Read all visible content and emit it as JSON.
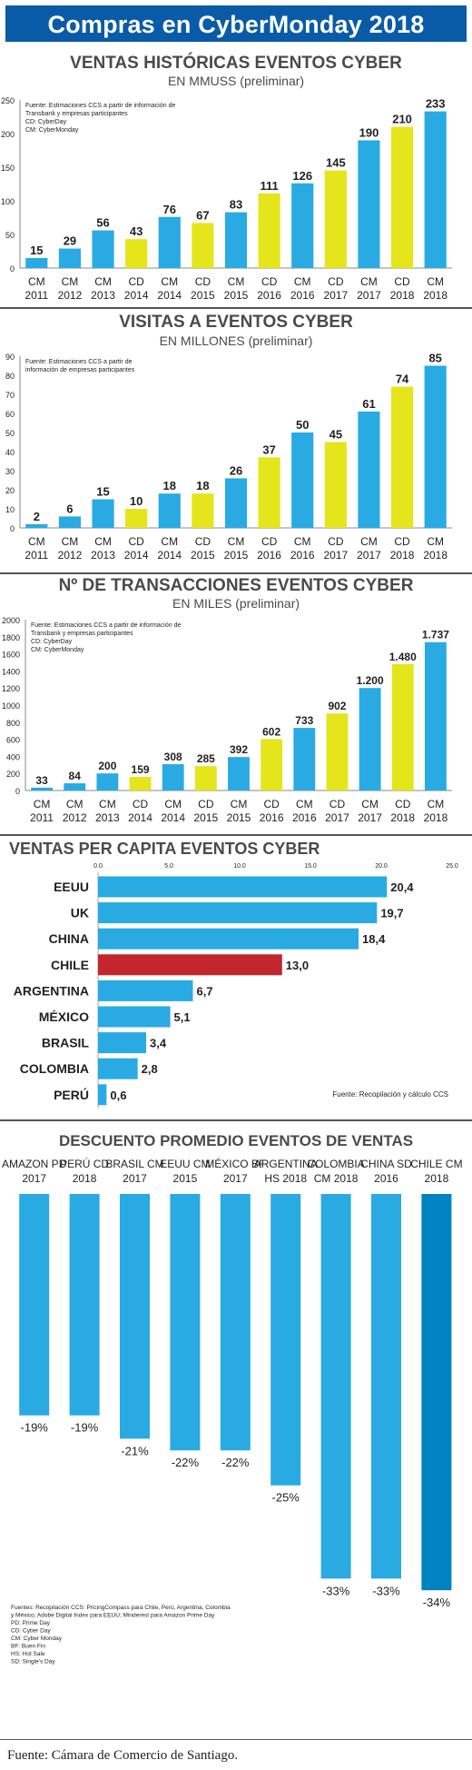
{
  "banner": {
    "title": "Compras en CyberMonday 2018"
  },
  "footer": {
    "text": "Fuente: Cámara de Comercio de Santiago."
  },
  "colors": {
    "cm": "#29aae2",
    "cd": "#e4e51b",
    "chile": "#c1272d",
    "sd": "#0083c0",
    "text": "#231f20"
  },
  "chart_data": [
    {
      "type": "bar",
      "title": "VENTAS HISTÓRICAS EVENTOS CYBER",
      "subtitle": "EN MMUSS (preliminar)",
      "note": [
        "Fuente: Estimaciones CCS a partir de información de",
        "Transbank y empresas participantes",
        "CD: CyberDay",
        "CM: CyberMonday"
      ],
      "categories": [
        [
          "CM",
          "2011"
        ],
        [
          "CM",
          "2012"
        ],
        [
          "CM",
          "2013"
        ],
        [
          "CD",
          "2014"
        ],
        [
          "CM",
          "2014"
        ],
        [
          "CD",
          "2015"
        ],
        [
          "CM",
          "2015"
        ],
        [
          "CD",
          "2016"
        ],
        [
          "CM",
          "2016"
        ],
        [
          "CD",
          "2017"
        ],
        [
          "CM",
          "2017"
        ],
        [
          "CD",
          "2018"
        ],
        [
          "CM",
          "2018"
        ]
      ],
      "values": [
        15,
        29,
        56,
        43,
        76,
        67,
        83,
        111,
        126,
        145,
        190,
        210,
        233
      ],
      "labels": [
        "15",
        "29",
        "56",
        "43",
        "76",
        "67",
        "83",
        "111",
        "126",
        "145",
        "190",
        "210",
        "233"
      ],
      "ylim": [
        0,
        250
      ],
      "yticks": [
        0,
        50,
        100,
        150,
        200,
        250
      ]
    },
    {
      "type": "bar",
      "title": "VISITAS A EVENTOS CYBER",
      "subtitle": "EN MILLONES (preliminar)",
      "note": [
        "Fuente: Estimaciones CCS a partir de",
        "información de empresas participantes"
      ],
      "categories": [
        [
          "CM",
          "2011"
        ],
        [
          "CM",
          "2012"
        ],
        [
          "CM",
          "2013"
        ],
        [
          "CD",
          "2014"
        ],
        [
          "CM",
          "2014"
        ],
        [
          "CD",
          "2015"
        ],
        [
          "CM",
          "2015"
        ],
        [
          "CD",
          "2016"
        ],
        [
          "CM",
          "2016"
        ],
        [
          "CD",
          "2017"
        ],
        [
          "CM",
          "2017"
        ],
        [
          "CD",
          "2018"
        ],
        [
          "CM",
          "2018"
        ]
      ],
      "values": [
        2,
        6,
        15,
        10,
        18,
        18,
        26,
        37,
        50,
        45,
        61,
        74,
        85
      ],
      "labels": [
        "2",
        "6",
        "15",
        "10",
        "18",
        "18",
        "26",
        "37",
        "50",
        "45",
        "61",
        "74",
        "85"
      ],
      "ylim": [
        0,
        90
      ],
      "yticks": [
        0,
        10,
        20,
        30,
        40,
        50,
        60,
        70,
        80,
        90
      ]
    },
    {
      "type": "bar",
      "title": "Nº DE TRANSACCIONES EVENTOS CYBER",
      "subtitle": "EN MILES (preliminar)",
      "note": [
        "Fuente: Estimaciones CCS a partir de información de",
        "Transbank y empresas participantes",
        "CD: CyberDay",
        "CM: CyberMonday"
      ],
      "categories": [
        [
          "CM",
          "2011"
        ],
        [
          "CM",
          "2012"
        ],
        [
          "CM",
          "2013"
        ],
        [
          "CD",
          "2014"
        ],
        [
          "CM",
          "2014"
        ],
        [
          "CD",
          "2015"
        ],
        [
          "CM",
          "2015"
        ],
        [
          "CD",
          "2016"
        ],
        [
          "CM",
          "2016"
        ],
        [
          "CD",
          "2017"
        ],
        [
          "CM",
          "2017"
        ],
        [
          "CD",
          "2018"
        ],
        [
          "CM",
          "2018"
        ]
      ],
      "values": [
        33,
        84,
        200,
        159,
        308,
        285,
        392,
        602,
        733,
        902,
        1200,
        1480,
        1737
      ],
      "labels": [
        "33",
        "84",
        "200",
        "159",
        "308",
        "285",
        "392",
        "602",
        "733",
        "902",
        "1.200",
        "1.480",
        "1.737"
      ],
      "ylim": [
        0,
        2000
      ],
      "yticks": [
        0,
        200,
        400,
        600,
        800,
        1000,
        1200,
        1400,
        1600,
        1800,
        2000
      ]
    },
    {
      "type": "bar",
      "orientation": "horizontal",
      "title": "VENTAS PER CAPITA EVENTOS CYBER",
      "note": [
        "Fuente: Recopilación y cálculo CCS"
      ],
      "categories": [
        "EEUU",
        "UK",
        "CHINA",
        "CHILE",
        "ARGENTINA",
        "MÉXICO",
        "BRASIL",
        "COLOMBIA",
        "PERÚ"
      ],
      "values": [
        20.4,
        19.7,
        18.4,
        13.0,
        6.7,
        5.1,
        3.4,
        2.8,
        0.6
      ],
      "labels": [
        "20,4",
        "19,7",
        "18,4",
        "13,0",
        "6,7",
        "5,1",
        "3,4",
        "2,8",
        "0,6"
      ],
      "highlight": "CHILE",
      "xlim": [
        0,
        25
      ],
      "xticks": [
        "0.0",
        "5.0",
        "10.0",
        "15.0",
        "20.0",
        "25.0"
      ]
    },
    {
      "type": "bar",
      "title": "DESCUENTO PROMEDIO EVENTOS DE VENTAS",
      "note": [
        "Fuentes: Recopilación CCS: PricingCompass para Chile, Perú, Argentina, Colombia",
        "y México; Adobe Digital Index para EEUU; Minderest para Amazon Prime Day",
        "PD: Prime Day",
        "CD: Cyber Day",
        "CM: Cyber Monday",
        "BF: Buen Fin",
        "HS: Hot Sale",
        "SD: Single's Day"
      ],
      "categories": [
        [
          "AMAZON PD",
          "2017"
        ],
        [
          "PERÚ CD",
          "2018"
        ],
        [
          "BRASIL CM",
          "2017"
        ],
        [
          "EEUU CM",
          "2015"
        ],
        [
          "MÉXICO BF",
          "2017"
        ],
        [
          "ARGENTINA",
          "HS 2018"
        ],
        [
          "COLOMBIA",
          "CM 2018"
        ],
        [
          "CHINA SD",
          "2016"
        ],
        [
          "CHILE CM",
          "2018"
        ]
      ],
      "values": [
        -19,
        -19,
        -21,
        -22,
        -22,
        -25,
        -33,
        -33,
        -34
      ],
      "labels": [
        "-19%",
        "-19%",
        "-21%",
        "-22%",
        "-22%",
        "-25%",
        "-33%",
        "-33%",
        "-34%"
      ],
      "highlight": "CHILE CM",
      "ylim": [
        -35,
        0
      ]
    }
  ]
}
